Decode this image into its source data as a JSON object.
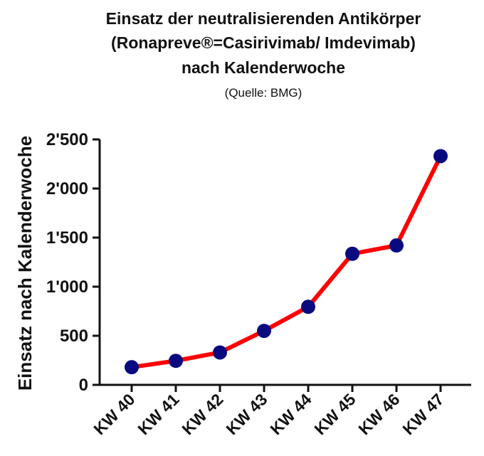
{
  "chart_data": {
    "type": "line",
    "title": [
      "Einsatz der neutralisierenden Antikörper",
      "(Ronapreve®=Casirivimab/ Imdevimab)",
      "nach Kalenderwoche"
    ],
    "subtitle": "(Quelle: BMG)",
    "ylabel": "Einsatz nach Kalenderwoche",
    "categories": [
      "KW 40",
      "KW 41",
      "KW 42",
      "KW 43",
      "KW 44",
      "KW 45",
      "KW 46",
      "KW 47"
    ],
    "values": [
      180,
      245,
      330,
      550,
      795,
      1335,
      1420,
      2330
    ],
    "ylim": [
      0,
      2500
    ],
    "yticks": [
      0,
      500,
      1000,
      1500,
      2000,
      2500
    ],
    "ytick_labels": [
      "0",
      "500",
      "1'000",
      "1'500",
      "2'000",
      "2'500"
    ],
    "line_color": "#ff0000",
    "marker_color": "#0a0a80",
    "grid": false,
    "legend": "none"
  }
}
